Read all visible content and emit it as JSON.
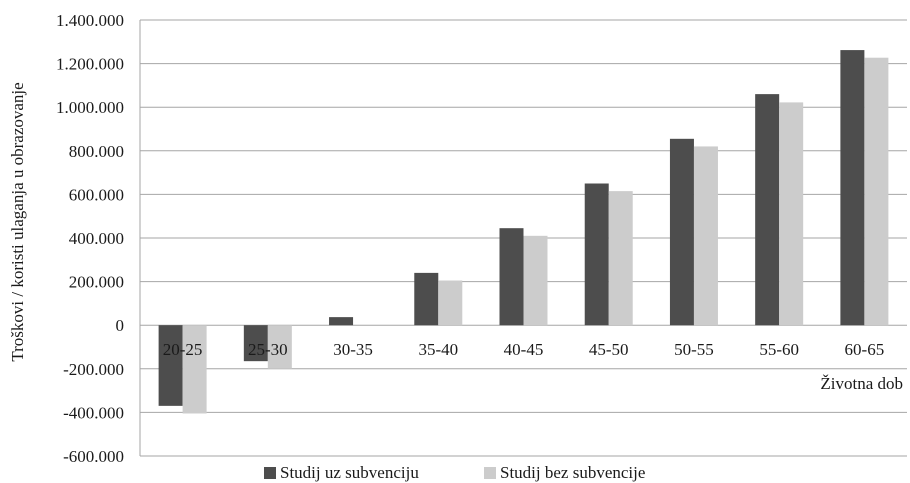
{
  "chart_data": {
    "type": "bar",
    "title": "",
    "xlabel": "Životna dob",
    "ylabel": "Troškovi / koristi ulaganja u obrazovanje",
    "categories": [
      "20-25",
      "25-30",
      "30-35",
      "35-40",
      "40-45",
      "45-50",
      "50-55",
      "55-60",
      "60-65"
    ],
    "series": [
      {
        "name": "Studij uz subvenciju",
        "color": "#4d4d4d",
        "values": [
          -370000,
          -165000,
          37000,
          240000,
          445000,
          650000,
          855000,
          1060000,
          1262000
        ]
      },
      {
        "name": "Studij bez subvencije",
        "color": "#cccccc",
        "values": [
          -405000,
          -200000,
          0,
          205000,
          410000,
          615000,
          820000,
          1022000,
          1227000
        ]
      }
    ],
    "ylim": [
      -600000,
      1400000
    ],
    "yticks": [
      -600000,
      -400000,
      -200000,
      0,
      200000,
      400000,
      600000,
      800000,
      1000000,
      1200000,
      1400000
    ],
    "ytick_labels": [
      "-600.000",
      "-400.000",
      "-200.000",
      "0",
      "200.000",
      "400.000",
      "600.000",
      "800.000",
      "1.000.000",
      "1.200.000",
      "1.400.000"
    ],
    "grid": "horizontal",
    "legend_position": "bottom"
  }
}
